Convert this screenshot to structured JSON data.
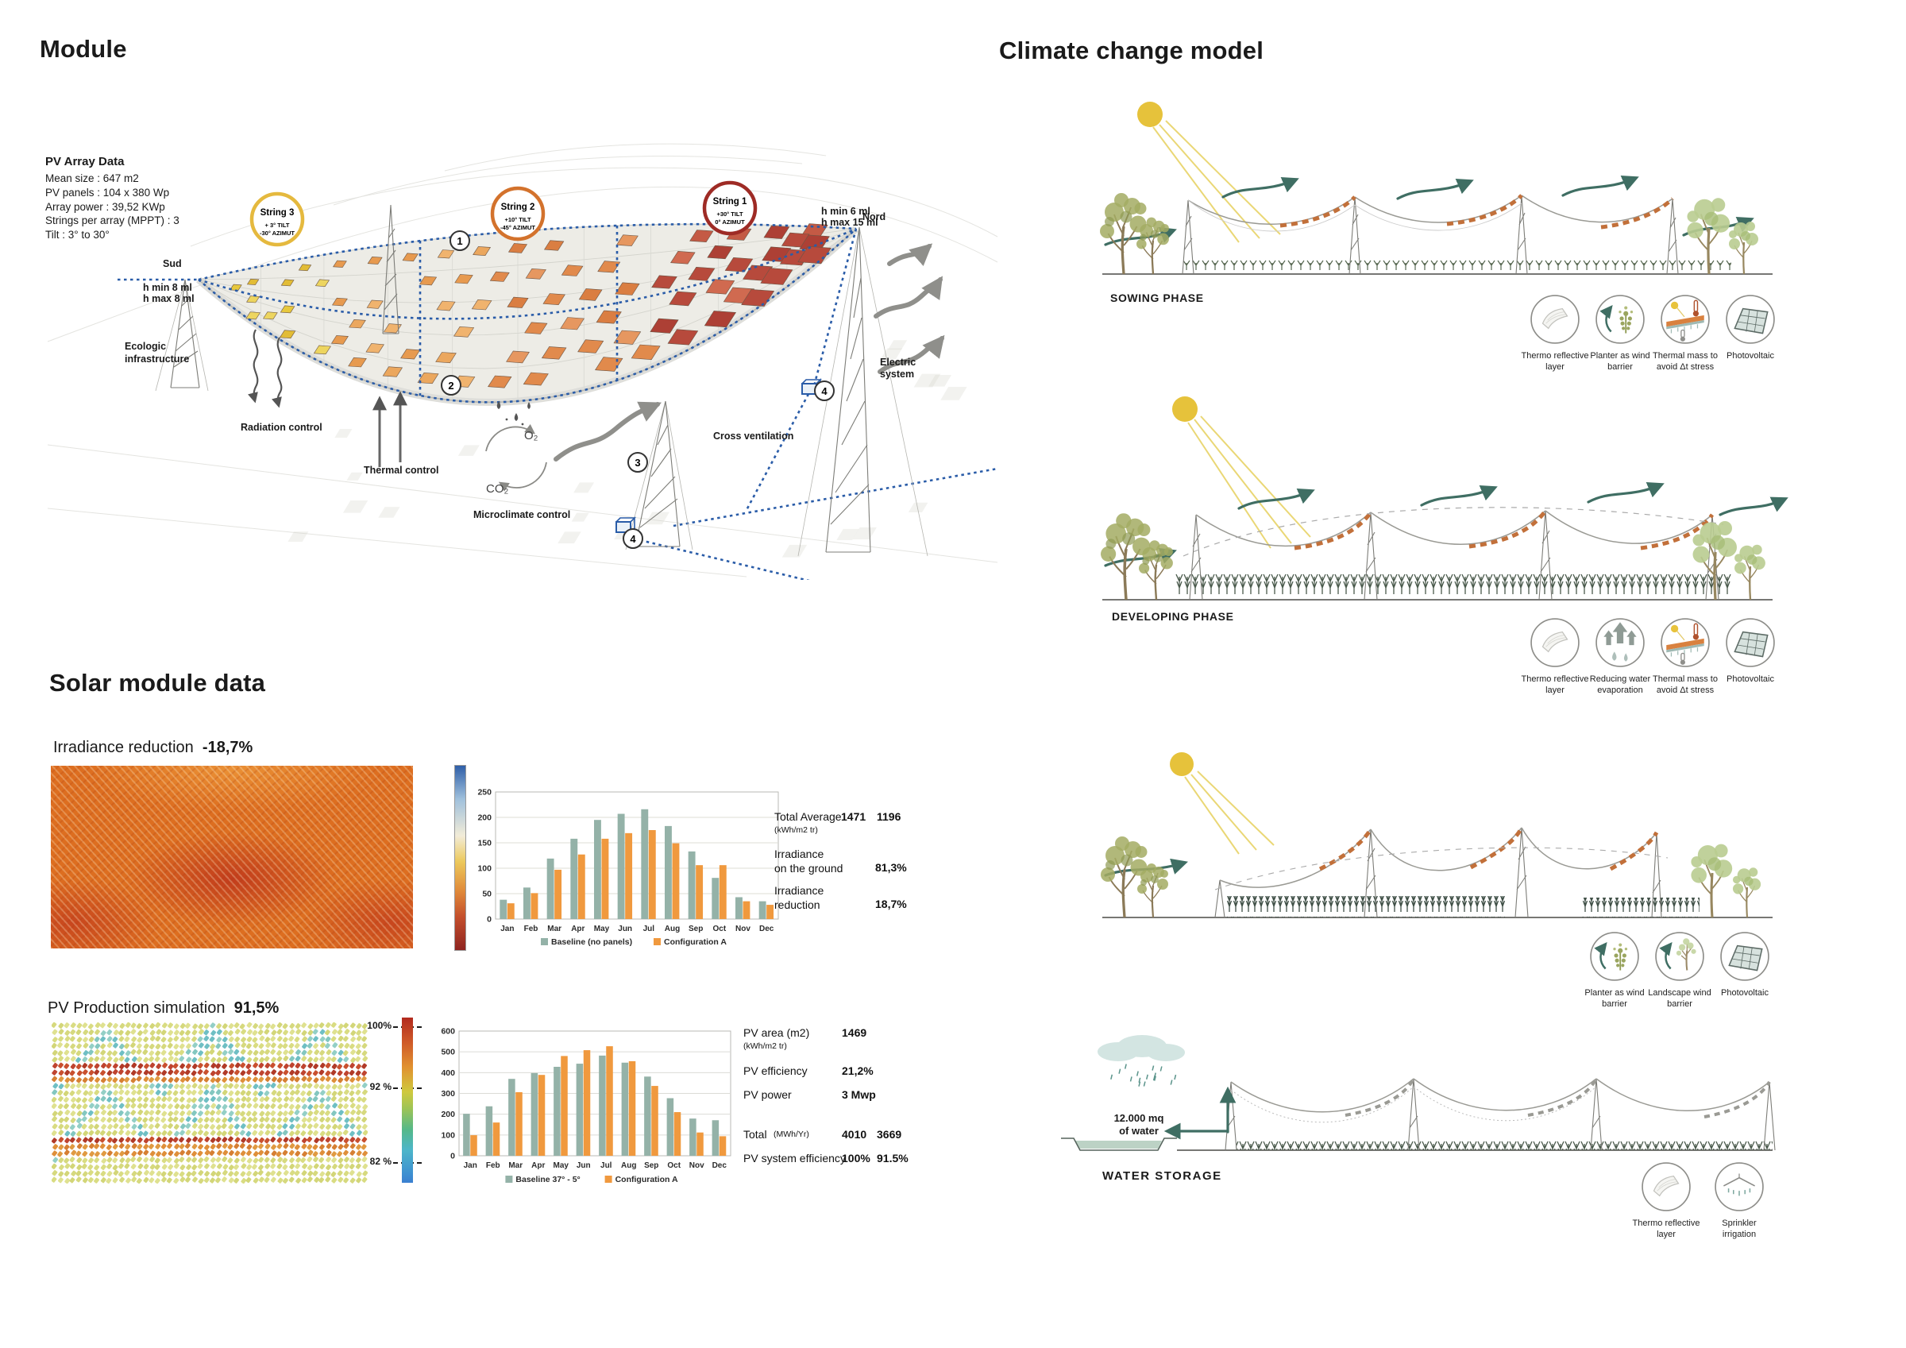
{
  "module": {
    "title": "Module",
    "pv_array_data": {
      "heading": "PV Array Data",
      "lines": "Mean size : 647 m2\nPV panels : 104 x 380 Wp\nArray power : 39,52 KWp\nStrings per array (MPPT) : 3\nTilt : 3° to 30°"
    },
    "strings": [
      {
        "name": "String 3",
        "line1": "+ 3° TILT",
        "line2": "-30° AZIMUT",
        "ring": "#e5b93e"
      },
      {
        "name": "String 2",
        "line1": "+10° TILT",
        "line2": "-45° AZIMUT",
        "ring": "#d3722c"
      },
      {
        "name": "String 1",
        "line1": "+30° TILT",
        "line2": "0° AZIMUT",
        "ring": "#9e2b25"
      }
    ],
    "labels": {
      "sud": "Sud",
      "nord": "Nord",
      "h_sud_1": "h min   8 ml",
      "h_sud_2": "h max  8 ml",
      "h_nord_1": "h min   6 ml",
      "h_nord_2": "h max 15 ml",
      "ecologic_1": "Ecologic",
      "ecologic_2": "infrastructure",
      "radiation": "Radiation control",
      "thermal": "Thermal control",
      "microclimate": "Microclimate control",
      "o2": "O₂",
      "co2": "CO₂",
      "cross": "Cross ventilation",
      "electric_1": "Electric",
      "electric_2": "system",
      "m1": "1",
      "m2": "2",
      "m3": "3",
      "m4": "4"
    },
    "panel_colors": {
      "yellow": [
        "#e7c83d",
        "#edd55f",
        "#e2bc35"
      ],
      "light_orange": [
        "#eba75e",
        "#e79a4f",
        "#f0b36e"
      ],
      "orange": [
        "#e18a4c",
        "#da7e42",
        "#e69760"
      ],
      "red": [
        "#c45a45",
        "#b74a3c",
        "#d06a50",
        "#ad4035"
      ]
    }
  },
  "solar": {
    "title": "Solar module data",
    "irradiance_label": "Irradiance reduction",
    "irradiance_value": "-18,7%",
    "irr_stats": {
      "row1_label": "Total Average",
      "row1_v1": "1471",
      "row1_v2": "1196",
      "row1_unit": "(kWh/m2 tr)",
      "row2_label": "Irradiance\non the ground",
      "row2_value": "81,3%",
      "row3_label": "Irradiance\nreduction",
      "row3_value": "18,7%"
    },
    "production_label": "PV Production simulation",
    "production_value": "91,5%",
    "scale": {
      "top": "100%",
      "mid": "92 %",
      "bot": "82 %"
    },
    "dot_palette": {
      "yellow": [
        "#d9dc82",
        "#d3d678",
        "#dfe190",
        "#d6d97e"
      ],
      "cyan": [
        "#83c7c0",
        "#6fbfc4",
        "#93cfc6"
      ],
      "red": [
        "#bf4430",
        "#b13a28",
        "#c9502f"
      ],
      "orange": [
        "#d67f33",
        "#df8f3a",
        "#e09a42"
      ]
    },
    "pv_stats": {
      "row1_label": "PV area (m2)",
      "row1_value": "1469",
      "row1_unit": "(kWh/m2 tr)",
      "row2_label": "PV efficiency",
      "row2_value": "21,2%",
      "row3_label": "PV power",
      "row3_value": "3 Mwp",
      "row4_label": "Total",
      "row4_unit": "(MWh/Yr)",
      "row4_v1": "4010",
      "row4_v2": "3669",
      "row5_label": "PV system efficiency",
      "row5_v1": "100%",
      "row5_v2": "91.5%"
    }
  },
  "chart_data": [
    {
      "type": "bar",
      "categories": [
        "Jan",
        "Feb",
        "Mar",
        "Apr",
        "May",
        "Jun",
        "Jul",
        "Aug",
        "Sep",
        "Oct",
        "Nov",
        "Dec"
      ],
      "series": [
        {
          "name": "Baseline (no panels)",
          "color": "#94b2a8",
          "values": [
            38,
            62,
            119,
            158,
            195,
            207,
            216,
            183,
            133,
            81,
            43,
            35
          ]
        },
        {
          "name": "Configuration A",
          "color": "#f0993e",
          "values": [
            31,
            51,
            97,
            127,
            158,
            169,
            175,
            149,
            106,
            106,
            35,
            28
          ]
        }
      ],
      "ylim": [
        0,
        250
      ],
      "ytick": 50,
      "grid": true,
      "legend_position": "bottom",
      "xlabel": "",
      "ylabel": ""
    },
    {
      "type": "bar",
      "categories": [
        "Jan",
        "Feb",
        "Mar",
        "Apr",
        "May",
        "Jun",
        "Jul",
        "Aug",
        "Sep",
        "Oct",
        "Nov",
        "Dec"
      ],
      "series": [
        {
          "name": "Baseline 37° - 5°",
          "color": "#94b2a8",
          "values": [
            202,
            238,
            370,
            398,
            428,
            443,
            482,
            448,
            381,
            277,
            179,
            171
          ]
        },
        {
          "name": "Configuration A",
          "color": "#f0993e",
          "values": [
            99,
            160,
            306,
            389,
            480,
            508,
            527,
            455,
            336,
            210,
            112,
            94
          ]
        }
      ],
      "ylim": [
        0,
        600
      ],
      "ytick": 100,
      "grid": true,
      "legend_position": "bottom",
      "xlabel": "",
      "ylabel": ""
    }
  ],
  "climate": {
    "title": "Climate change model",
    "phase1_label": "SOWING PHASE",
    "phase2_label": "DEVELOPING PHASE",
    "phase4_label": "WATER STORAGE",
    "water_note": "12.000 mq\nof water",
    "icon_rows": [
      {
        "top": 370,
        "items": [
          {
            "cx": 1958,
            "type": "thermo",
            "label": "Thermo reflective\nlayer"
          },
          {
            "cx": 2040,
            "type": "planter",
            "label": "Planter as wind\nbarrier"
          },
          {
            "cx": 2122,
            "type": "thermal",
            "label": "Thermal mass to\navoid Δt stress"
          },
          {
            "cx": 2204,
            "type": "pv",
            "label": "Photovoltaic"
          }
        ]
      },
      {
        "top": 777,
        "items": [
          {
            "cx": 1958,
            "type": "thermo",
            "label": "Thermo reflective\nlayer"
          },
          {
            "cx": 2040,
            "type": "water",
            "label": "Reducing water\nevaporation"
          },
          {
            "cx": 2122,
            "type": "thermal",
            "label": "Thermal mass to\navoid Δt stress"
          },
          {
            "cx": 2204,
            "type": "pv",
            "label": "Photovoltaic"
          }
        ]
      },
      {
        "top": 1172,
        "items": [
          {
            "cx": 2033,
            "type": "planter",
            "label": "Planter as wind\nbarrier"
          },
          {
            "cx": 2115,
            "type": "landscape",
            "label": "Landscape wind\nbarrier"
          },
          {
            "cx": 2197,
            "type": "pv",
            "label": "Photovoltaic"
          }
        ]
      },
      {
        "top": 1462,
        "items": [
          {
            "cx": 2098,
            "type": "thermo",
            "label": "Thermo reflective\nlayer"
          },
          {
            "cx": 2190,
            "type": "sprinkler",
            "label": "Sprinkler\nirrigation"
          }
        ]
      }
    ]
  },
  "colors": {
    "accent_blue": "#2a5ca8",
    "teal": "#3f6e63",
    "sun": "#e6c23b",
    "olive": "#a3ab63",
    "green": "#b9cc90",
    "orange_dash": "#c2703a"
  }
}
